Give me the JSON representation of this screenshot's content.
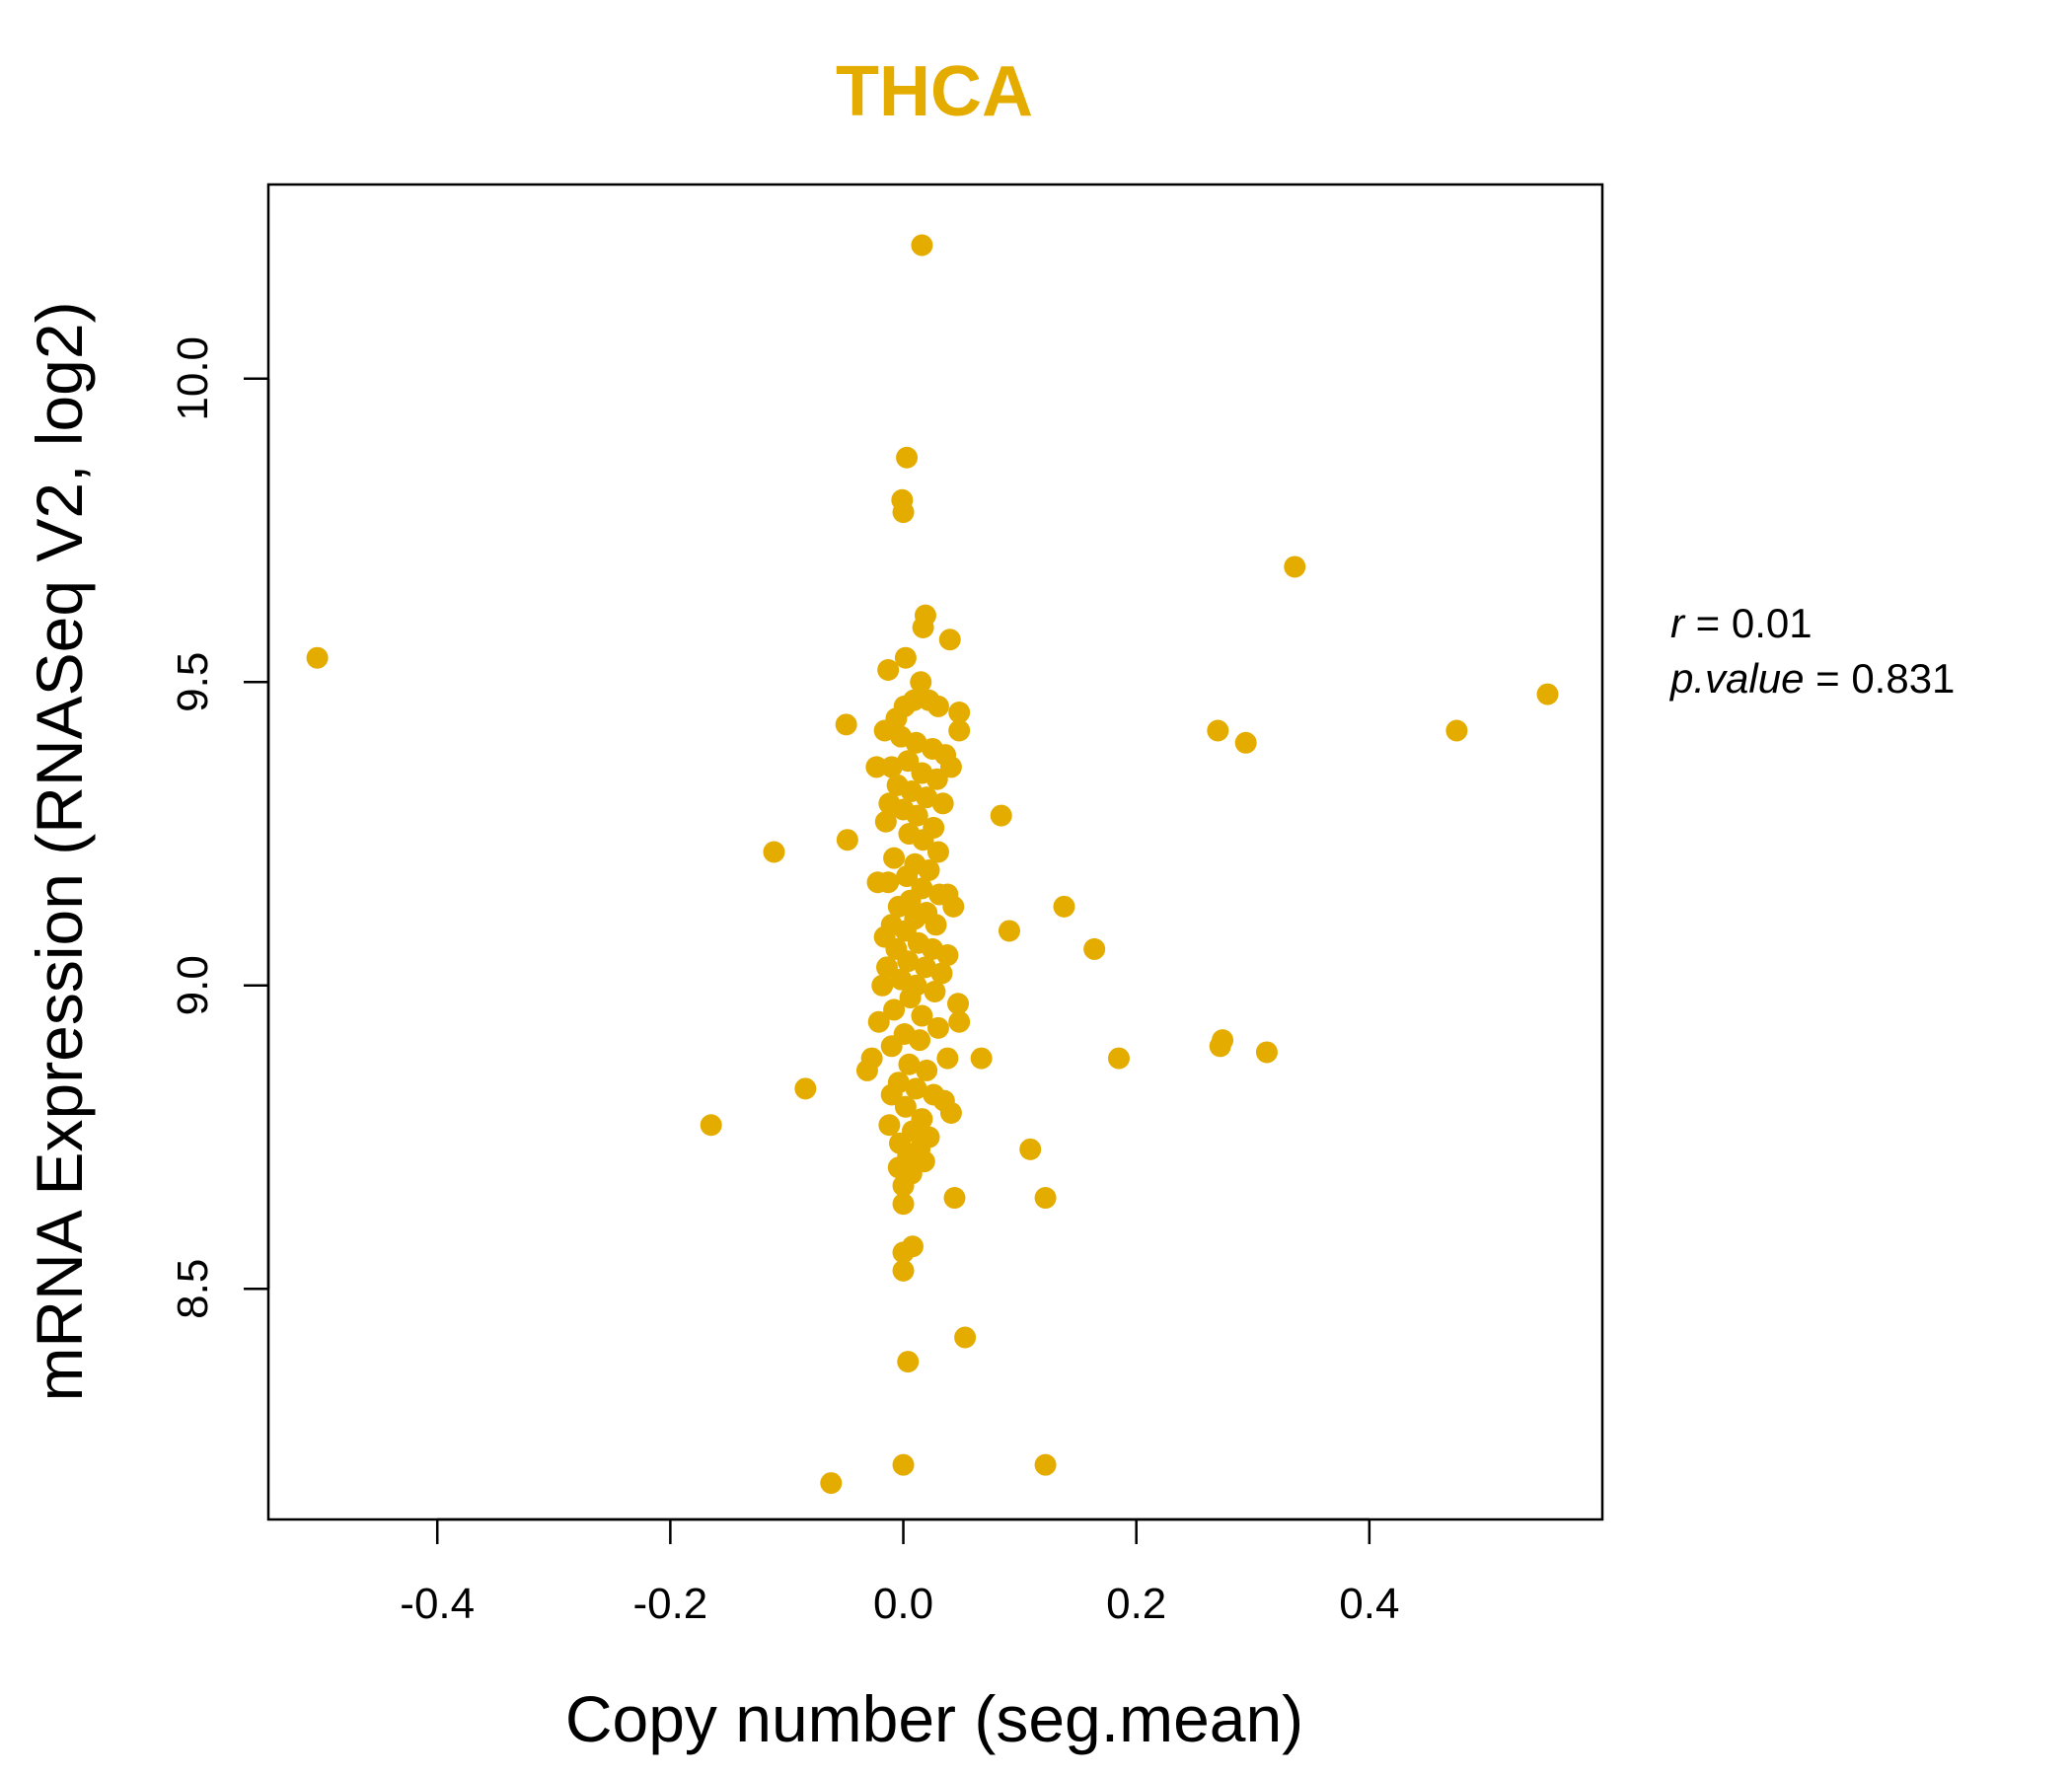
{
  "colors": {
    "accent": "#E5AC00",
    "axis": "#000000",
    "text": "#000000"
  },
  "chart_data": {
    "type": "scatter",
    "title": "THCA",
    "xlabel": "Copy number (seg.mean)",
    "ylabel": "mRNA Expression (RNASeq V2, log2)",
    "xlim": [
      -0.545,
      0.6
    ],
    "ylim": [
      8.12,
      10.32
    ],
    "xticks": [
      -0.4,
      -0.2,
      0.0,
      0.2,
      0.4
    ],
    "xtick_labels": [
      "-0.4",
      "-0.2",
      "0.0",
      "0.2",
      "0.4"
    ],
    "yticks": [
      8.5,
      9.0,
      9.5,
      10.0
    ],
    "ytick_labels": [
      "8.5",
      "9.0",
      "9.5",
      "10.0"
    ],
    "annotation": {
      "r_label": "r",
      "r_value": "0.01",
      "p_label": "p.value",
      "p_value": "0.831"
    },
    "series": [
      {
        "name": "samples",
        "points": [
          [
            -0.503,
            9.54
          ],
          [
            0.016,
            10.22
          ],
          [
            0.003,
            9.87
          ],
          [
            -0.001,
            9.8
          ],
          [
            0.0,
            9.78
          ],
          [
            0.336,
            9.69
          ],
          [
            0.019,
            9.61
          ],
          [
            0.017,
            9.59
          ],
          [
            0.04,
            9.57
          ],
          [
            0.002,
            9.54
          ],
          [
            -0.013,
            9.52
          ],
          [
            0.553,
            9.48
          ],
          [
            0.475,
            9.42
          ],
          [
            0.27,
            9.42
          ],
          [
            0.294,
            9.4
          ],
          [
            -0.049,
            9.43
          ],
          [
            0.048,
            9.45
          ],
          [
            0.048,
            9.42
          ],
          [
            0.015,
            9.5
          ],
          [
            0.009,
            9.47
          ],
          [
            0.001,
            9.46
          ],
          [
            -0.006,
            9.44
          ],
          [
            0.022,
            9.47
          ],
          [
            0.03,
            9.46
          ],
          [
            -0.016,
            9.42
          ],
          [
            -0.002,
            9.41
          ],
          [
            0.011,
            9.4
          ],
          [
            0.025,
            9.39
          ],
          [
            0.036,
            9.38
          ],
          [
            0.004,
            9.37
          ],
          [
            -0.01,
            9.36
          ],
          [
            -0.023,
            9.36
          ],
          [
            0.016,
            9.35
          ],
          [
            0.029,
            9.34
          ],
          [
            0.041,
            9.36
          ],
          [
            -0.005,
            9.33
          ],
          [
            0.007,
            9.32
          ],
          [
            0.02,
            9.31
          ],
          [
            0.034,
            9.3
          ],
          [
            -0.012,
            9.3
          ],
          [
            0.0,
            9.29
          ],
          [
            0.012,
            9.28
          ],
          [
            0.084,
            9.28
          ],
          [
            0.026,
            9.26
          ],
          [
            -0.015,
            9.27
          ],
          [
            0.005,
            9.25
          ],
          [
            -0.048,
            9.24
          ],
          [
            0.017,
            9.24
          ],
          [
            0.03,
            9.22
          ],
          [
            -0.111,
            9.22
          ],
          [
            -0.008,
            9.21
          ],
          [
            0.01,
            9.2
          ],
          [
            0.022,
            9.19
          ],
          [
            0.003,
            9.18
          ],
          [
            -0.013,
            9.17
          ],
          [
            -0.022,
            9.17
          ],
          [
            0.016,
            9.16
          ],
          [
            0.031,
            9.15
          ],
          [
            0.038,
            9.15
          ],
          [
            0.006,
            9.14
          ],
          [
            -0.004,
            9.13
          ],
          [
            0.138,
            9.13
          ],
          [
            0.043,
            9.13
          ],
          [
            0.02,
            9.12
          ],
          [
            0.01,
            9.11
          ],
          [
            -0.01,
            9.1
          ],
          [
            0.028,
            9.1
          ],
          [
            -0.016,
            9.08
          ],
          [
            0.002,
            9.09
          ],
          [
            0.091,
            9.09
          ],
          [
            0.013,
            9.07
          ],
          [
            0.025,
            9.06
          ],
          [
            -0.006,
            9.06
          ],
          [
            0.164,
            9.06
          ],
          [
            0.038,
            9.05
          ],
          [
            0.004,
            9.04
          ],
          [
            -0.014,
            9.03
          ],
          [
            0.019,
            9.03
          ],
          [
            0.033,
            9.02
          ],
          [
            -0.002,
            9.01
          ],
          [
            0.011,
            9.0
          ],
          [
            0.027,
            8.99
          ],
          [
            -0.018,
            9.0
          ],
          [
            0.006,
            8.98
          ],
          [
            0.047,
            8.97
          ],
          [
            -0.008,
            8.96
          ],
          [
            0.016,
            8.95
          ],
          [
            -0.021,
            8.94
          ],
          [
            0.048,
            8.94
          ],
          [
            0.03,
            8.93
          ],
          [
            0.001,
            8.92
          ],
          [
            0.014,
            8.91
          ],
          [
            -0.01,
            8.9
          ],
          [
            0.274,
            8.91
          ],
          [
            0.272,
            8.9
          ],
          [
            0.312,
            8.89
          ],
          [
            0.038,
            8.88
          ],
          [
            0.067,
            8.88
          ],
          [
            0.185,
            8.88
          ],
          [
            -0.027,
            8.88
          ],
          [
            -0.031,
            8.86
          ],
          [
            0.005,
            8.87
          ],
          [
            0.02,
            8.86
          ],
          [
            -0.004,
            8.84
          ],
          [
            0.011,
            8.83
          ],
          [
            -0.084,
            8.83
          ],
          [
            0.026,
            8.82
          ],
          [
            -0.01,
            8.82
          ],
          [
            0.035,
            8.81
          ],
          [
            0.002,
            8.8
          ],
          [
            0.041,
            8.79
          ],
          [
            0.016,
            8.78
          ],
          [
            -0.012,
            8.77
          ],
          [
            -0.165,
            8.77
          ],
          [
            0.008,
            8.76
          ],
          [
            0.022,
            8.75
          ],
          [
            -0.003,
            8.74
          ],
          [
            0.014,
            8.73
          ],
          [
            0.109,
            8.73
          ],
          [
            0.004,
            8.72
          ],
          [
            0.018,
            8.71
          ],
          [
            -0.004,
            8.7
          ],
          [
            0.007,
            8.69
          ],
          [
            0.0,
            8.67
          ],
          [
            0.044,
            8.65
          ],
          [
            0.122,
            8.65
          ],
          [
            0.0,
            8.64
          ],
          [
            0.008,
            8.57
          ],
          [
            0.0,
            8.56
          ],
          [
            0.0,
            8.53
          ],
          [
            0.053,
            8.42
          ],
          [
            0.004,
            8.38
          ],
          [
            0.122,
            8.21
          ],
          [
            0.0,
            8.21
          ],
          [
            -0.062,
            8.18
          ]
        ]
      }
    ]
  }
}
